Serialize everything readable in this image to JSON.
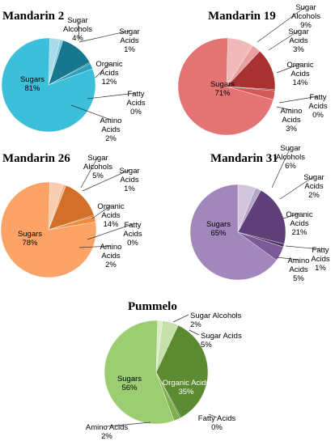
{
  "chart_data": [
    {
      "type": "pie",
      "title": "Mandarin 2",
      "slices": [
        {
          "label": "Sugar Alcohols",
          "value": 4,
          "color": "#a9dcea"
        },
        {
          "label": "Sugar Acids",
          "value": 1,
          "color": "#7fcde0"
        },
        {
          "label": "Organic Acids",
          "value": 12,
          "color": "#16778f"
        },
        {
          "label": "Fatty Acids",
          "value": 0,
          "color": "#0f5d70"
        },
        {
          "label": "Amino Acids",
          "value": 2,
          "color": "#2aa2bf"
        },
        {
          "label": "Sugars",
          "value": 81,
          "color": "#3bbfda"
        }
      ]
    },
    {
      "type": "pie",
      "title": "Mandarin 19",
      "slices": [
        {
          "label": "Sugar Alcohols",
          "value": 9,
          "color": "#f1b9b9"
        },
        {
          "label": "Sugar Acids",
          "value": 3,
          "color": "#e9a0a0"
        },
        {
          "label": "Organic Acids",
          "value": 14,
          "color": "#a83232"
        },
        {
          "label": "Fatty Acids",
          "value": 0,
          "color": "#7e2222"
        },
        {
          "label": "Amino Acids",
          "value": 3,
          "color": "#d45a5a"
        },
        {
          "label": "Sugars",
          "value": 71,
          "color": "#e47373"
        }
      ]
    },
    {
      "type": "pie",
      "title": "Mandarin 26",
      "slices": [
        {
          "label": "Sugar Alcohols",
          "value": 5,
          "color": "#fbcdb0"
        },
        {
          "label": "Sugar Acids",
          "value": 1,
          "color": "#f9b68d"
        },
        {
          "label": "Organic Acids",
          "value": 14,
          "color": "#d2702a"
        },
        {
          "label": "Fatty Acids",
          "value": 0,
          "color": "#a8561c"
        },
        {
          "label": "Amino Acids",
          "value": 2,
          "color": "#f08c3c"
        },
        {
          "label": "Sugars",
          "value": 78,
          "color": "#fca468"
        }
      ]
    },
    {
      "type": "pie",
      "title": "Mandarin 31",
      "slices": [
        {
          "label": "Sugar Alcohols",
          "value": 6,
          "color": "#d2c6dd"
        },
        {
          "label": "Sugar Acids",
          "value": 2,
          "color": "#b8a7c9"
        },
        {
          "label": "Organic Acids",
          "value": 21,
          "color": "#5e3f78"
        },
        {
          "label": "Fatty Acids",
          "value": 1,
          "color": "#4a2f61"
        },
        {
          "label": "Amino Acids",
          "value": 5,
          "color": "#7c5a99"
        },
        {
          "label": "Sugars",
          "value": 65,
          "color": "#a287bc"
        }
      ]
    },
    {
      "type": "pie",
      "title": "Pummelo",
      "slices": [
        {
          "label": "Sugar Alcohols",
          "value": 2,
          "color": "#dbecc9"
        },
        {
          "label": "Sugar Acids",
          "value": 5,
          "color": "#c5e0aa"
        },
        {
          "label": "Organic Acids",
          "value": 35,
          "color": "#5c8a31"
        },
        {
          "label": "Fatty Acids",
          "value": 0,
          "color": "#466b25"
        },
        {
          "label": "Amino Acids",
          "value": 2,
          "color": "#7fb04e"
        },
        {
          "label": "Sugars",
          "value": 56,
          "color": "#9ccd72"
        }
      ]
    }
  ]
}
